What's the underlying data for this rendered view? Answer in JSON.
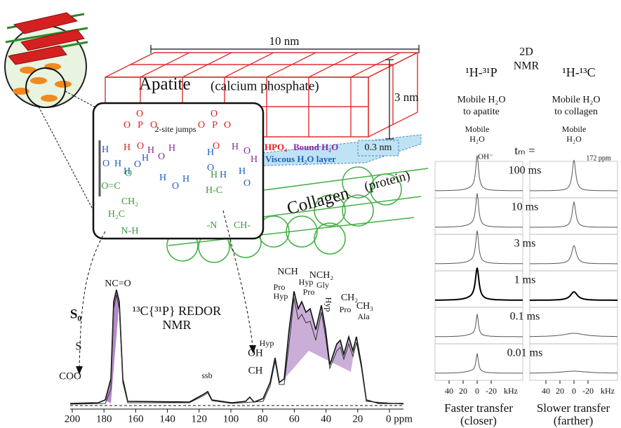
{
  "figure": {
    "structure": {
      "length": "10 nm",
      "height": "3 nm",
      "layer_thickness": "0.3 nm",
      "apatite": "Apatite",
      "apatite_note": "(calcium phosphate)",
      "collagen": "Collagen",
      "collagen_note": "(protein)",
      "hpo4": "HPO₄",
      "bound_water": "Bound H₂O",
      "viscous_layer": "Viscous H₂O layer"
    },
    "inset": {
      "jumps": "2-site jumps",
      "atoms": [
        "O",
        "O",
        "P",
        "O",
        "O",
        "H",
        "O",
        "O",
        "P",
        "O",
        "O",
        "H",
        "O",
        "H",
        "H",
        "O",
        "H",
        "H",
        "O",
        "H",
        "O",
        "H",
        "H",
        "H",
        "O",
        "H",
        "H",
        "O",
        "H",
        "H",
        "O",
        "O=C",
        "O",
        "CH₂",
        "H₂C",
        "N-H",
        "H-C",
        "-N",
        "CH-",
        "H"
      ]
    },
    "redor": {
      "s0": "S₀",
      "s": "S",
      "title": "¹³C{³¹P} REDOR",
      "subtitle": "NMR",
      "peaks": [
        "NC=O",
        "NCH",
        "Pro",
        "Hyp",
        "Hyp",
        "Pro",
        "NCH₂",
        "Gly",
        "Hyp",
        "CH₂",
        "Pro",
        "CH₃",
        "Ala",
        "ssb",
        "Hyp",
        "OH",
        "CH",
        "COO"
      ],
      "axis": [
        "200",
        "180",
        "160",
        "140",
        "120",
        "100",
        "80",
        "60",
        "40",
        "20",
        "0 ppm"
      ]
    },
    "nmr2d": {
      "title": [
        "2D",
        "NMR"
      ],
      "tm_label": "tₘ =",
      "mixing_times": [
        "100 ms",
        "10 ms",
        "3 ms",
        "1 ms",
        "0.1 ms",
        "0.01 ms"
      ],
      "columns": [
        {
          "nucleus": "¹H-³¹P",
          "desc": [
            "Mobile H₂O",
            "to apatite"
          ],
          "peak": [
            "Mobile",
            "H₂O"
          ],
          "peak_note": "OH⁻",
          "axis": [
            "40",
            "20",
            "0",
            "-20",
            "kHz"
          ],
          "footer": [
            "Faster transfer",
            "(closer)"
          ]
        },
        {
          "nucleus": "¹H-¹³C",
          "desc": [
            "Mobile H₂O",
            "to collagen"
          ],
          "peak": [
            "Mobile",
            "H₂O"
          ],
          "peak_note": "172 ppm",
          "axis": [
            "40",
            "20",
            "0",
            "-20",
            "kHz"
          ],
          "footer": [
            "Slower transfer",
            "(farther)"
          ]
        }
      ]
    }
  }
}
